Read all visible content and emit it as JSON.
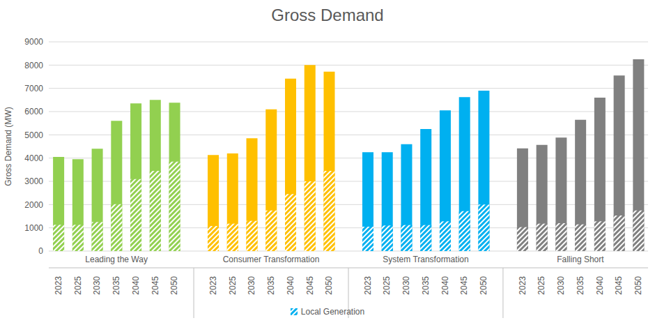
{
  "chart_data": {
    "type": "bar",
    "title": "Gross Demand",
    "y_label": "Gross Demand (MW)",
    "categories": [
      "2023",
      "2025",
      "2030",
      "2035",
      "2040",
      "2045",
      "2050",
      null,
      "2023",
      "2025",
      "2030",
      "2035",
      "2040",
      "2045",
      "2050",
      null,
      "2023",
      "2025",
      "2030",
      "2035",
      "2040",
      "2045",
      "2050",
      null,
      "2023",
      "2025",
      "2030",
      "2035",
      "2040",
      "2045",
      "2050"
    ],
    "groups": [
      {
        "name": "Leading the Way",
        "color": "#92d050"
      },
      {
        "name": "Consumer Transformation",
        "color": "#ffc000"
      },
      {
        "name": "System Transformation",
        "color": "#00b0f0"
      },
      {
        "name": "Falling Short",
        "color": "#808080"
      }
    ],
    "values": [
      4050,
      3950,
      4400,
      5600,
      6350,
      6500,
      6380,
      null,
      4130,
      4200,
      4850,
      6100,
      7420,
      8000,
      7720,
      null,
      4250,
      4250,
      4600,
      5250,
      6050,
      6620,
      6900,
      null,
      4420,
      4570,
      4880,
      5650,
      6600,
      7550,
      8250
    ],
    "series": [
      {
        "name": "Local Generation",
        "color": "#00b0f0",
        "values": [
          1130,
          1130,
          1250,
          2020,
          3100,
          3450,
          3850,
          null,
          1080,
          1180,
          1300,
          1750,
          2450,
          3000,
          3450,
          null,
          1050,
          1100,
          1120,
          1120,
          1280,
          1720,
          2000,
          null,
          1030,
          1180,
          1200,
          1150,
          1280,
          1530,
          1750
        ]
      }
    ],
    "ylim": [
      0,
      9000
    ],
    "yticks": [
      0,
      1000,
      2000,
      3000,
      4000,
      5000,
      6000,
      7000,
      8000,
      9000
    ],
    "grid": true
  }
}
